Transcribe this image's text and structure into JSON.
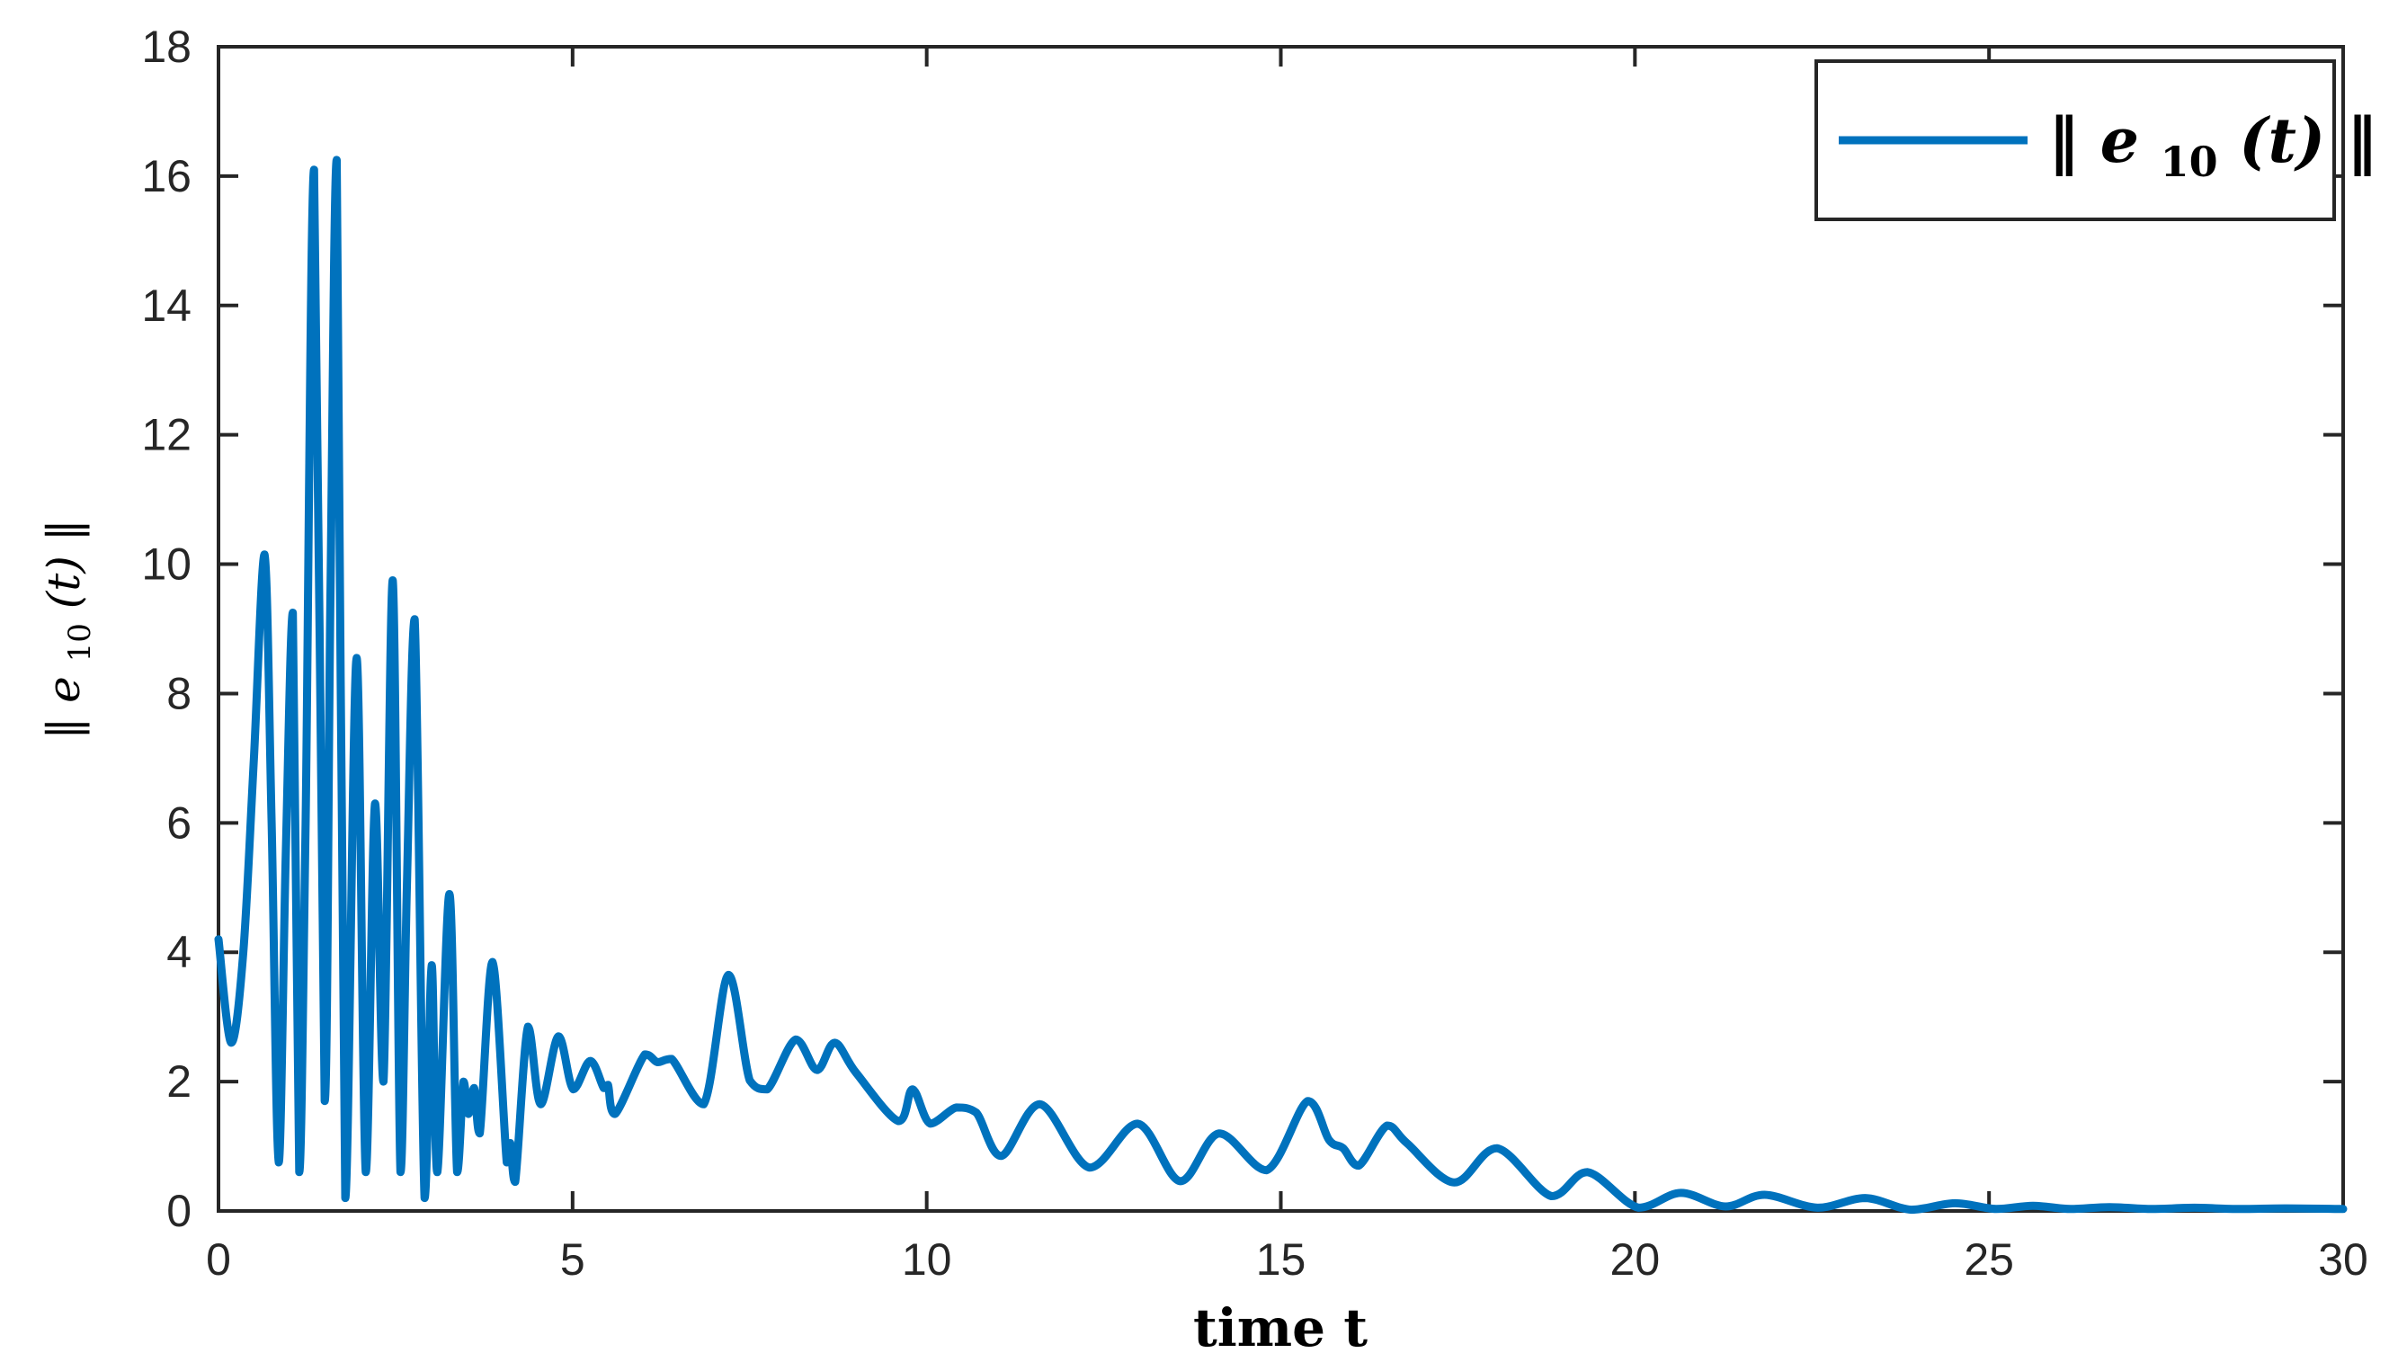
{
  "figure": {
    "background": "#ffffff",
    "axes_color": "#262626",
    "line_color": "#0072BD"
  },
  "xlabel": "time t",
  "ylabel": {
    "norm_open": "‖",
    "variable": "e",
    "subscript": "10",
    "argument": "(t)",
    "norm_close": "‖"
  },
  "legend": {
    "label": {
      "norm_open": "‖",
      "variable": "e",
      "subscript": "10",
      "argument": "(t)",
      "norm_close": "‖"
    }
  },
  "chart_data": {
    "type": "line",
    "title": "",
    "xlabel": "time t",
    "ylabel": "||e_10(t)||",
    "xlim": [
      0,
      30
    ],
    "ylim": [
      0,
      18
    ],
    "x_ticks": [
      0,
      5,
      10,
      15,
      20,
      25,
      30
    ],
    "y_ticks": [
      0,
      2,
      4,
      6,
      8,
      10,
      12,
      14,
      16,
      18
    ],
    "grid": false,
    "legend_position": "top-right",
    "series": [
      {
        "name": "||e_10(t)||",
        "color": "#0072BD",
        "points": [
          [
            0,
            4.2
          ],
          [
            0.18,
            2.6
          ],
          [
            0.35,
            4.0
          ],
          [
            0.5,
            7.0
          ],
          [
            0.65,
            10.15
          ],
          [
            0.75,
            6.0
          ],
          [
            0.85,
            0.75
          ],
          [
            0.95,
            5.5
          ],
          [
            1.05,
            9.25
          ],
          [
            1.14,
            0.6
          ],
          [
            1.23,
            6.0
          ],
          [
            1.35,
            16.1
          ],
          [
            1.5,
            1.7
          ],
          [
            1.58,
            9.5
          ],
          [
            1.67,
            16.25
          ],
          [
            1.79,
            0.2
          ],
          [
            1.95,
            8.55
          ],
          [
            2.08,
            0.6
          ],
          [
            2.21,
            6.3
          ],
          [
            2.33,
            2.0
          ],
          [
            2.46,
            9.75
          ],
          [
            2.57,
            0.6
          ],
          [
            2.66,
            5.0
          ],
          [
            2.77,
            9.15
          ],
          [
            2.91,
            0.2
          ],
          [
            3.01,
            3.8
          ],
          [
            3.09,
            0.6
          ],
          [
            3.26,
            4.9
          ],
          [
            3.37,
            0.6
          ],
          [
            3.46,
            2.0
          ],
          [
            3.53,
            1.5
          ],
          [
            3.61,
            1.9
          ],
          [
            3.69,
            1.2
          ],
          [
            3.87,
            3.85
          ],
          [
            4.07,
            0.75
          ],
          [
            4.12,
            1.05
          ],
          [
            4.19,
            0.45
          ],
          [
            4.37,
            2.85
          ],
          [
            4.55,
            1.65
          ],
          [
            4.8,
            2.7
          ],
          [
            5.01,
            1.88
          ],
          [
            5.25,
            2.32
          ],
          [
            5.44,
            1.9
          ],
          [
            5.5,
            1.95
          ],
          [
            5.6,
            1.5
          ],
          [
            6.02,
            2.42
          ],
          [
            6.2,
            2.3
          ],
          [
            6.4,
            2.35
          ],
          [
            6.85,
            1.65
          ],
          [
            7.2,
            3.65
          ],
          [
            7.5,
            2.02
          ],
          [
            7.75,
            1.88
          ],
          [
            8.15,
            2.65
          ],
          [
            8.45,
            2.18
          ],
          [
            8.7,
            2.6
          ],
          [
            9.0,
            2.14
          ],
          [
            9.6,
            1.39
          ],
          [
            9.8,
            1.88
          ],
          [
            10.05,
            1.35
          ],
          [
            10.42,
            1.6
          ],
          [
            10.7,
            1.52
          ],
          [
            11.05,
            0.85
          ],
          [
            11.6,
            1.65
          ],
          [
            12.3,
            0.67
          ],
          [
            12.98,
            1.35
          ],
          [
            13.58,
            0.46
          ],
          [
            14.13,
            1.2
          ],
          [
            14.8,
            0.63
          ],
          [
            15.38,
            1.7
          ],
          [
            15.68,
            1.1
          ],
          [
            15.88,
            0.97
          ],
          [
            16.1,
            0.7
          ],
          [
            16.5,
            1.32
          ],
          [
            16.78,
            1.05
          ],
          [
            17.45,
            0.44
          ],
          [
            18.05,
            0.97
          ],
          [
            18.82,
            0.23
          ],
          [
            19.33,
            0.6
          ],
          [
            20.05,
            0.05
          ],
          [
            20.65,
            0.28
          ],
          [
            21.28,
            0.07
          ],
          [
            21.83,
            0.25
          ],
          [
            22.58,
            0.05
          ],
          [
            23.25,
            0.2
          ],
          [
            23.9,
            0.02
          ],
          [
            24.52,
            0.12
          ],
          [
            25.1,
            0.03
          ],
          [
            25.62,
            0.08
          ],
          [
            26.15,
            0.03
          ],
          [
            26.7,
            0.06
          ],
          [
            27.3,
            0.03
          ],
          [
            27.9,
            0.05
          ],
          [
            28.5,
            0.03
          ],
          [
            29.2,
            0.04
          ],
          [
            30,
            0.03
          ]
        ]
      }
    ]
  }
}
